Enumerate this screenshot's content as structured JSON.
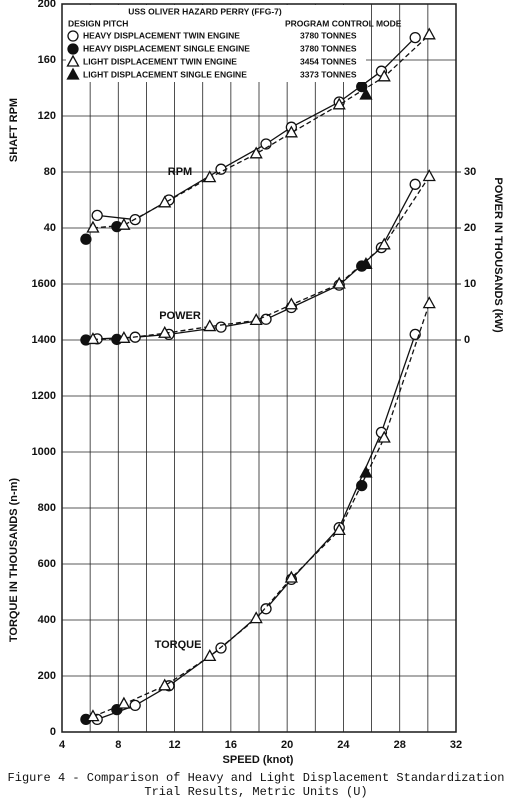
{
  "chart_data": {
    "type": "line",
    "title": "USS OLIVER HAZARD PERRY (FFG-7)",
    "legend_heading_left": "DESIGN PITCH",
    "legend_heading_right": "PROGRAM CONTROL MODE",
    "xlabel": "SPEED (knot)",
    "xlim": [
      4,
      32
    ],
    "xticks": [
      4,
      8,
      12,
      16,
      20,
      24,
      28,
      32
    ],
    "grid": true,
    "rpm_axis": {
      "label": "SHAFT RPM",
      "curve_label": "RPM",
      "ylim": [
        0,
        200
      ],
      "yticks": [
        40,
        80,
        120,
        160,
        200
      ]
    },
    "power_axis": {
      "label": "POWER IN THOUSANDS (kW)",
      "curve_label": "POWER",
      "ylim": [
        0,
        30
      ],
      "yticks": [
        0,
        10,
        20,
        30
      ]
    },
    "torque_axis": {
      "label": "TORQUE IN THOUSANDS (n-m)",
      "curve_label": "TORQUE",
      "ylim": [
        0,
        1600
      ],
      "yticks": [
        0,
        200,
        400,
        600,
        800,
        1000,
        1200,
        1400,
        1600
      ]
    },
    "series": [
      {
        "name": "HEAVY DISPLACEMENT TWIN ENGINE",
        "tonnes": "3780 TONNES",
        "marker": "circle",
        "filled": false,
        "line": "solid",
        "x": [
          6.5,
          9.2,
          11.6,
          15.3,
          18.5,
          20.3,
          23.7,
          26.7,
          29.1
        ],
        "rpm": [
          49,
          46,
          60,
          82,
          100,
          112,
          130,
          152,
          176
        ],
        "power": [
          0.2,
          0.5,
          1.0,
          2.3,
          3.7,
          5.8,
          9.8,
          16.5,
          27.8
        ],
        "torque": [
          45,
          95,
          165,
          300,
          440,
          545,
          730,
          1070,
          1420
        ]
      },
      {
        "name": "HEAVY DISPLACEMENT SINGLE ENGINE",
        "tonnes": "3780 TONNES",
        "marker": "circle",
        "filled": true,
        "line": "none",
        "x": [
          5.7,
          7.9,
          25.3
        ],
        "rpm": [
          32,
          41,
          141
        ],
        "power": [
          0,
          0.1,
          13.2
        ],
        "torque": [
          45,
          80,
          880
        ]
      },
      {
        "name": "LIGHT DISPLACEMENT TWIN ENGINE",
        "tonnes": "3454 TONNES",
        "marker": "triangle",
        "filled": false,
        "line": "dashed",
        "x": [
          6.2,
          8.4,
          11.3,
          14.5,
          17.8,
          20.3,
          23.7,
          26.9,
          30.1
        ],
        "rpm": [
          40,
          42,
          58,
          76,
          93,
          108,
          128,
          148,
          178
        ],
        "power": [
          0.1,
          0.3,
          1.2,
          2.4,
          3.5,
          6.3,
          10.0,
          17.0,
          29.2
        ],
        "torque": [
          55,
          100,
          165,
          270,
          405,
          550,
          720,
          1050,
          1530
        ]
      },
      {
        "name": "LIGHT DISPLACEMENT SINGLE ENGINE",
        "tonnes": "3373 TONNES",
        "marker": "triangle",
        "filled": true,
        "line": "none",
        "x": [
          25.6
        ],
        "rpm": [
          135
        ],
        "power": [
          13.5
        ],
        "torque": [
          925
        ]
      }
    ],
    "caption": [
      "Figure 4 - Comparison of Heavy and Light Displacement Standardization",
      "Trial Results, Metric Units (U)"
    ]
  }
}
